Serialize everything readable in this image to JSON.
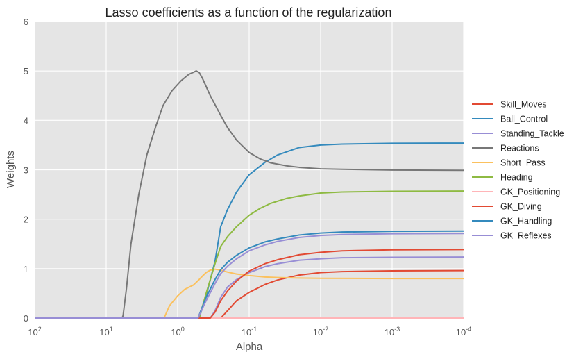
{
  "chart_data": {
    "type": "line",
    "title": "Lasso coefficients as a function of the regularization",
    "xlabel": "Alpha",
    "ylabel": "Weights",
    "xscale": "log",
    "x_direction": "decreasing",
    "xlim": [
      100,
      0.0001
    ],
    "ylim": [
      0,
      6
    ],
    "x_ticks": [
      {
        "value": 100,
        "base": "10",
        "exp": "2"
      },
      {
        "value": 10,
        "base": "10",
        "exp": "1"
      },
      {
        "value": 1,
        "base": "10",
        "exp": "0"
      },
      {
        "value": 0.1,
        "base": "10",
        "exp": "-1"
      },
      {
        "value": 0.01,
        "base": "10",
        "exp": "-2"
      },
      {
        "value": 0.001,
        "base": "10",
        "exp": "-3"
      },
      {
        "value": 0.0001,
        "base": "10",
        "exp": "-4"
      }
    ],
    "y_ticks": [
      "0",
      "1",
      "2",
      "3",
      "4",
      "5",
      "6"
    ],
    "grid": true,
    "legend_position": "right",
    "background": "#e5e5e5",
    "series": [
      {
        "name": "Skill_Moves",
        "color": "#e24a33",
        "points": [
          [
            100,
            0
          ],
          [
            0.25,
            0
          ],
          [
            0.2,
            0.15
          ],
          [
            0.15,
            0.35
          ],
          [
            0.1,
            0.52
          ],
          [
            0.06,
            0.68
          ],
          [
            0.04,
            0.77
          ],
          [
            0.02,
            0.87
          ],
          [
            0.01,
            0.92
          ],
          [
            0.005,
            0.94
          ],
          [
            0.001,
            0.955
          ],
          [
            0.0001,
            0.96
          ]
        ]
      },
      {
        "name": "Ball_Control",
        "color": "#348abd",
        "points": [
          [
            100,
            0
          ],
          [
            0.5,
            0
          ],
          [
            0.4,
            0.45
          ],
          [
            0.3,
            1.15
          ],
          [
            0.25,
            1.85
          ],
          [
            0.2,
            2.2
          ],
          [
            0.15,
            2.55
          ],
          [
            0.1,
            2.9
          ],
          [
            0.06,
            3.15
          ],
          [
            0.04,
            3.3
          ],
          [
            0.02,
            3.45
          ],
          [
            0.01,
            3.5
          ],
          [
            0.005,
            3.52
          ],
          [
            0.001,
            3.535
          ],
          [
            0.0001,
            3.54
          ]
        ]
      },
      {
        "name": "Standing_Tackle",
        "color": "#988ed5",
        "points": [
          [
            100,
            0
          ],
          [
            0.35,
            0
          ],
          [
            0.3,
            0.15
          ],
          [
            0.25,
            0.42
          ],
          [
            0.2,
            0.63
          ],
          [
            0.15,
            0.78
          ],
          [
            0.1,
            0.92
          ],
          [
            0.06,
            1.04
          ],
          [
            0.04,
            1.1
          ],
          [
            0.02,
            1.17
          ],
          [
            0.01,
            1.2
          ],
          [
            0.005,
            1.22
          ],
          [
            0.001,
            1.23
          ],
          [
            0.0001,
            1.235
          ]
        ]
      },
      {
        "name": "Reactions",
        "color": "#777777",
        "points": [
          [
            100,
            0
          ],
          [
            6,
            0
          ],
          [
            5.8,
            0.05
          ],
          [
            5.2,
            0.6
          ],
          [
            4.5,
            1.5
          ],
          [
            3.5,
            2.5
          ],
          [
            2.7,
            3.3
          ],
          [
            2.0,
            3.9
          ],
          [
            1.6,
            4.3
          ],
          [
            1.2,
            4.6
          ],
          [
            0.9,
            4.8
          ],
          [
            0.7,
            4.93
          ],
          [
            0.55,
            5.0
          ],
          [
            0.5,
            4.97
          ],
          [
            0.45,
            4.85
          ],
          [
            0.35,
            4.5
          ],
          [
            0.25,
            4.1
          ],
          [
            0.2,
            3.85
          ],
          [
            0.15,
            3.6
          ],
          [
            0.1,
            3.35
          ],
          [
            0.07,
            3.22
          ],
          [
            0.05,
            3.14
          ],
          [
            0.03,
            3.08
          ],
          [
            0.02,
            3.05
          ],
          [
            0.01,
            3.02
          ],
          [
            0.005,
            3.01
          ],
          [
            0.001,
            2.995
          ],
          [
            0.0001,
            2.99
          ]
        ]
      },
      {
        "name": "Short_Pass",
        "color": "#fbc15e",
        "points": [
          [
            100,
            0
          ],
          [
            1.55,
            0
          ],
          [
            1.3,
            0.25
          ],
          [
            1.0,
            0.45
          ],
          [
            0.8,
            0.58
          ],
          [
            0.6,
            0.67
          ],
          [
            0.5,
            0.78
          ],
          [
            0.45,
            0.85
          ],
          [
            0.4,
            0.92
          ],
          [
            0.35,
            0.97
          ],
          [
            0.3,
            0.99
          ],
          [
            0.25,
            0.97
          ],
          [
            0.2,
            0.93
          ],
          [
            0.15,
            0.89
          ],
          [
            0.1,
            0.86
          ],
          [
            0.06,
            0.83
          ],
          [
            0.04,
            0.82
          ],
          [
            0.02,
            0.81
          ],
          [
            0.01,
            0.805
          ],
          [
            0.001,
            0.8
          ],
          [
            0.0001,
            0.8
          ]
        ]
      },
      {
        "name": "Heading",
        "color": "#8eba42",
        "points": [
          [
            100,
            0
          ],
          [
            0.5,
            0
          ],
          [
            0.4,
            0.5
          ],
          [
            0.3,
            1.1
          ],
          [
            0.25,
            1.45
          ],
          [
            0.2,
            1.65
          ],
          [
            0.15,
            1.85
          ],
          [
            0.1,
            2.08
          ],
          [
            0.07,
            2.22
          ],
          [
            0.05,
            2.32
          ],
          [
            0.03,
            2.42
          ],
          [
            0.02,
            2.47
          ],
          [
            0.01,
            2.53
          ],
          [
            0.005,
            2.55
          ],
          [
            0.001,
            2.565
          ],
          [
            0.0001,
            2.57
          ]
        ]
      },
      {
        "name": "GK_Positioning",
        "color": "#ffb5b8",
        "points": [
          [
            100,
            0
          ],
          [
            0.0001,
            0
          ]
        ]
      },
      {
        "name": "GK_Diving",
        "color": "#e24a33",
        "points": [
          [
            100,
            0
          ],
          [
            0.35,
            0
          ],
          [
            0.3,
            0.12
          ],
          [
            0.25,
            0.35
          ],
          [
            0.2,
            0.55
          ],
          [
            0.15,
            0.75
          ],
          [
            0.1,
            0.95
          ],
          [
            0.06,
            1.1
          ],
          [
            0.04,
            1.18
          ],
          [
            0.02,
            1.28
          ],
          [
            0.01,
            1.33
          ],
          [
            0.005,
            1.36
          ],
          [
            0.001,
            1.38
          ],
          [
            0.0001,
            1.385
          ]
        ]
      },
      {
        "name": "GK_Handling",
        "color": "#348abd",
        "points": [
          [
            100,
            0
          ],
          [
            0.52,
            0
          ],
          [
            0.4,
            0.42
          ],
          [
            0.3,
            0.78
          ],
          [
            0.25,
            0.98
          ],
          [
            0.2,
            1.13
          ],
          [
            0.15,
            1.27
          ],
          [
            0.1,
            1.42
          ],
          [
            0.06,
            1.54
          ],
          [
            0.04,
            1.6
          ],
          [
            0.02,
            1.68
          ],
          [
            0.01,
            1.72
          ],
          [
            0.005,
            1.74
          ],
          [
            0.001,
            1.755
          ],
          [
            0.0001,
            1.76
          ]
        ]
      },
      {
        "name": "GK_Reflexes",
        "color": "#988ed5",
        "points": [
          [
            100,
            0
          ],
          [
            0.52,
            0
          ],
          [
            0.4,
            0.35
          ],
          [
            0.3,
            0.7
          ],
          [
            0.25,
            0.9
          ],
          [
            0.2,
            1.05
          ],
          [
            0.15,
            1.2
          ],
          [
            0.1,
            1.36
          ],
          [
            0.06,
            1.48
          ],
          [
            0.04,
            1.55
          ],
          [
            0.02,
            1.63
          ],
          [
            0.01,
            1.67
          ],
          [
            0.005,
            1.69
          ],
          [
            0.001,
            1.705
          ],
          [
            0.0001,
            1.71
          ]
        ]
      }
    ]
  }
}
